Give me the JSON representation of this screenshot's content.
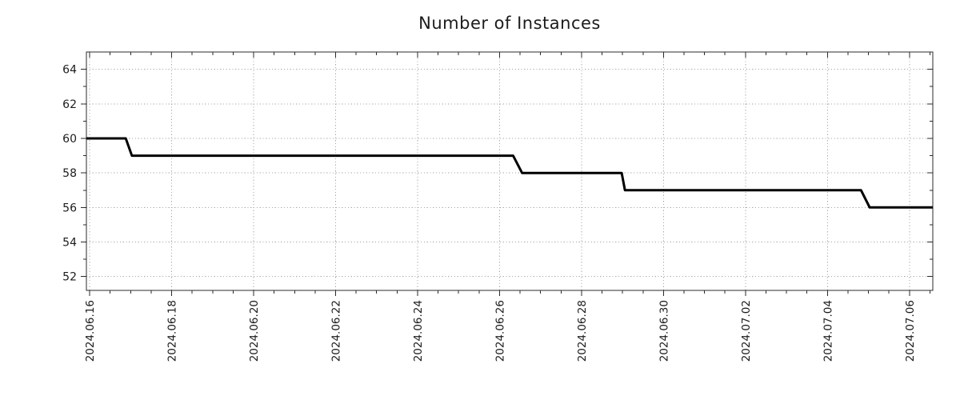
{
  "chart_data": {
    "type": "line",
    "line_style": "step",
    "title": "Number of Instances",
    "x_axis": {
      "tick_labels": [
        "2024.06.16",
        "2024.06.18",
        "2024.06.20",
        "2024.06.22",
        "2024.06.24",
        "2024.06.26",
        "2024.06.28",
        "2024.06.30",
        "2024.07.02",
        "2024.07.04",
        "2024.07.06"
      ],
      "tick_positions_days": [
        0,
        2,
        4,
        6,
        8,
        10,
        12,
        14,
        16,
        18,
        20
      ],
      "minor_tick_step_days": 0.5,
      "range_days": [
        -0.08,
        20.57
      ],
      "label_rotation_deg": -90
    },
    "y_axis": {
      "tick_labels": [
        "52",
        "54",
        "56",
        "58",
        "60",
        "62",
        "64"
      ],
      "ticks": [
        52,
        54,
        56,
        58,
        60,
        62,
        64
      ],
      "minor_ticks": [
        53,
        55,
        57,
        59,
        61,
        63
      ],
      "range": [
        51.2,
        65.0
      ]
    },
    "series": [
      {
        "name": "instances",
        "color": "#000000",
        "width": 3,
        "points_days_value": [
          [
            -0.08,
            60
          ],
          [
            0.88,
            60
          ],
          [
            1.03,
            59
          ],
          [
            10.33,
            59
          ],
          [
            10.55,
            58
          ],
          [
            12.98,
            58
          ],
          [
            13.06,
            57
          ],
          [
            18.82,
            57
          ],
          [
            19.03,
            56
          ],
          [
            20.57,
            56
          ]
        ]
      }
    ],
    "grid": {
      "show": true,
      "color": "#a8a8a8",
      "style": "dotted"
    },
    "colors": {
      "background": "#ffffff",
      "frame": "#2b2b2b",
      "text": "#1c1c1c",
      "line": "#000000"
    },
    "legend": {
      "show": false
    }
  }
}
